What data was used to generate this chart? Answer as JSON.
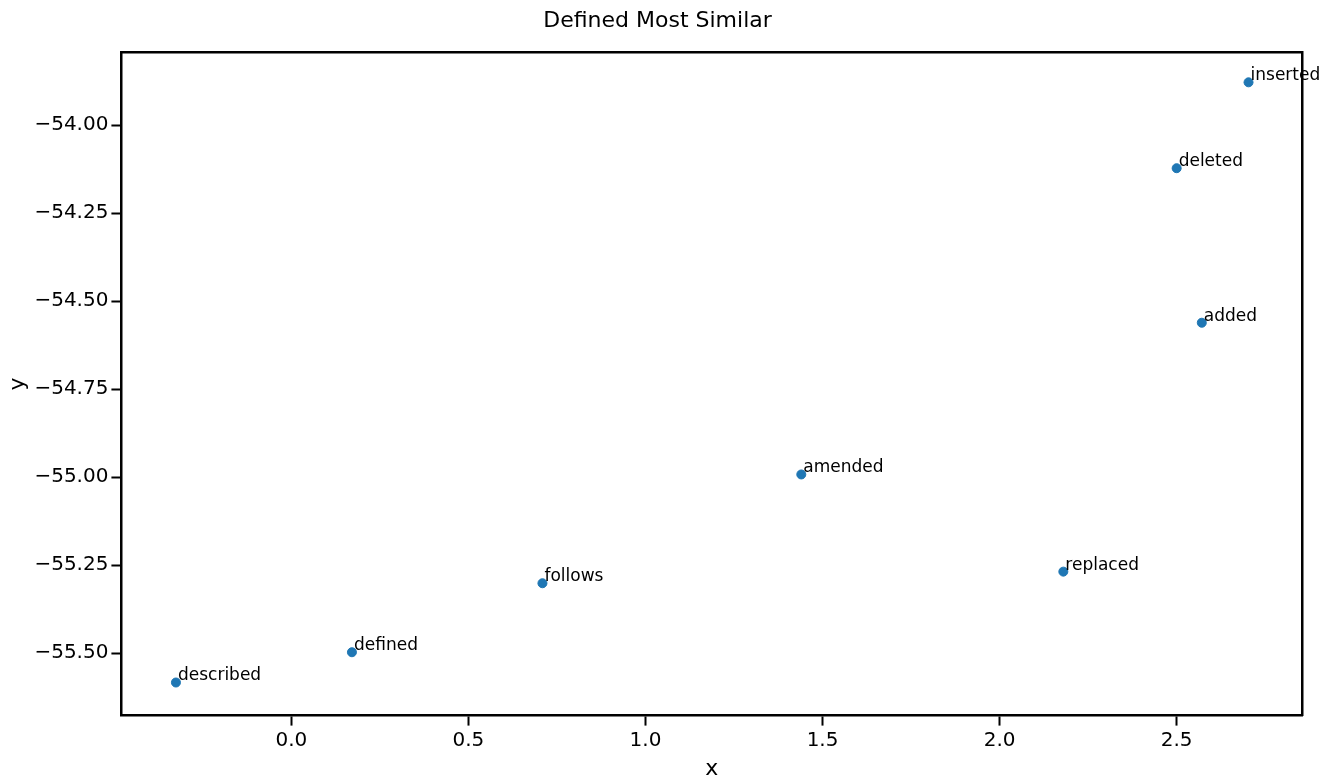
{
  "chart_data": {
    "type": "scatter",
    "title": "Defined Most Similar",
    "xlabel": "x",
    "ylabel": "y",
    "x": [
      2.703,
      2.5,
      2.571,
      1.44,
      2.18,
      0.709,
      0.171,
      -0.326
    ],
    "values": [
      -53.878,
      -54.122,
      -54.561,
      -54.992,
      -55.268,
      -55.301,
      -55.497,
      -55.583
    ],
    "color": "#1f77b4",
    "marker": "circle",
    "grid": false,
    "legend": false,
    "xlim": [
      -0.48,
      2.854
    ],
    "xticks": [
      {
        "value": 0,
        "label": "0.0"
      },
      {
        "value": 0.5,
        "label": "0.5"
      },
      {
        "value": 1,
        "label": "1.0"
      },
      {
        "value": 1.5,
        "label": "1.5"
      },
      {
        "value": 2,
        "label": "2.0"
      },
      {
        "value": 2.5,
        "label": "2.5"
      }
    ],
    "ylim": [
      -55.677,
      -53.793
    ],
    "yticks": [
      {
        "value": -54,
        "label": "−54.00"
      },
      {
        "value": -54.25,
        "label": "−54.25"
      },
      {
        "value": -54.5,
        "label": "−54.50"
      },
      {
        "value": -54.75,
        "label": "−54.75"
      },
      {
        "value": -55,
        "label": "−55.00"
      },
      {
        "value": -55.25,
        "label": "−55.25"
      },
      {
        "value": -55.5,
        "label": "−55.50"
      }
    ],
    "annotations": [
      {
        "text": "inserted",
        "x": 2.703,
        "y": -53.878
      },
      {
        "text": "deleted",
        "x": 2.5,
        "y": -54.122
      },
      {
        "text": "added",
        "x": 2.571,
        "y": -54.561
      },
      {
        "text": "amended",
        "x": 1.44,
        "y": -54.992
      },
      {
        "text": "replaced",
        "x": 2.18,
        "y": -55.268
      },
      {
        "text": "follows",
        "x": 0.709,
        "y": -55.301
      },
      {
        "text": "defined",
        "x": 0.171,
        "y": -55.497
      },
      {
        "text": "described",
        "x": -0.326,
        "y": -55.583
      }
    ]
  }
}
